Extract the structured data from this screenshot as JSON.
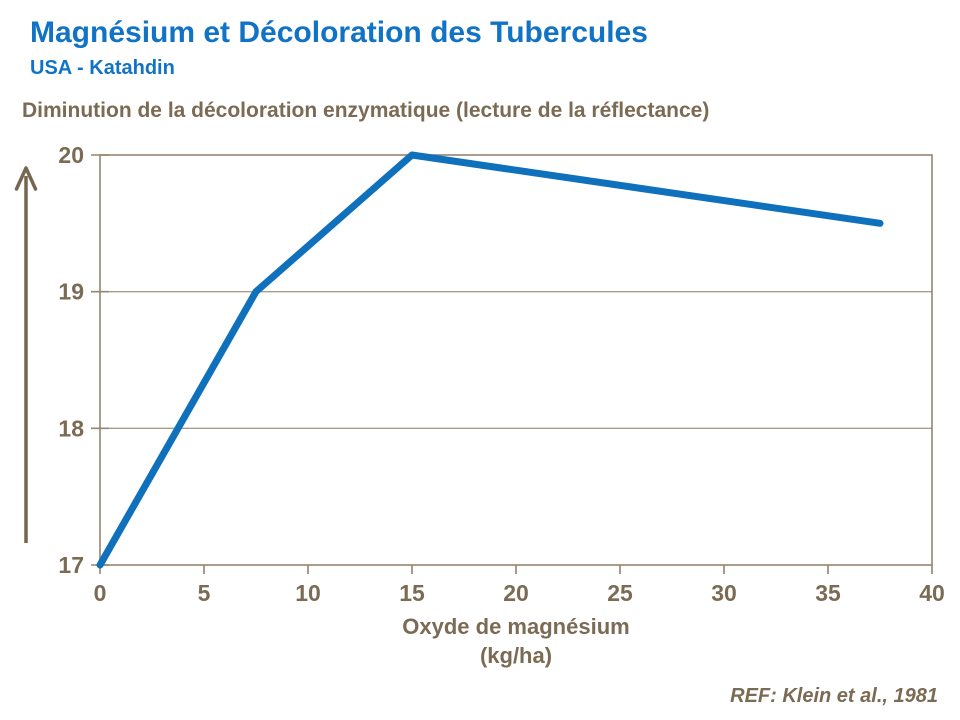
{
  "header": {
    "title": "Magnésium et Décoloration des Tubercules",
    "subtitle": "USA - Katahdin"
  },
  "chart_heading": "Diminution de la décoloration enzymatique (lecture de la réflectance)",
  "footer": {
    "reference": "REF: Klein et al., 1981"
  },
  "colors": {
    "title_blue": "#1173C5",
    "line_blue": "#0F70BC",
    "text_brown": "#7C6B54",
    "gridline": "#A89C8C",
    "axis_border": "#93866F",
    "arrow": "#75674F"
  },
  "chart_data": {
    "type": "line",
    "series_name": "Lecture de la réflectance",
    "x": [
      0,
      7.5,
      15,
      37.5
    ],
    "values": [
      17,
      19,
      20,
      19.5
    ],
    "title": "Diminution de la décoloration enzymatique (lecture de la réflectance)",
    "xlabel_line1": "Oxyde de magnésium",
    "xlabel_line2": "(kg/ha)",
    "ylabel": "",
    "xlim": [
      0,
      40
    ],
    "ylim": [
      17,
      20
    ],
    "x_ticks": [
      0,
      5,
      10,
      15,
      20,
      25,
      30,
      35,
      40
    ],
    "y_ticks": [
      17,
      18,
      19,
      20
    ],
    "grid": "horizontal",
    "legend": "none",
    "y_axis_arrow": "up"
  }
}
